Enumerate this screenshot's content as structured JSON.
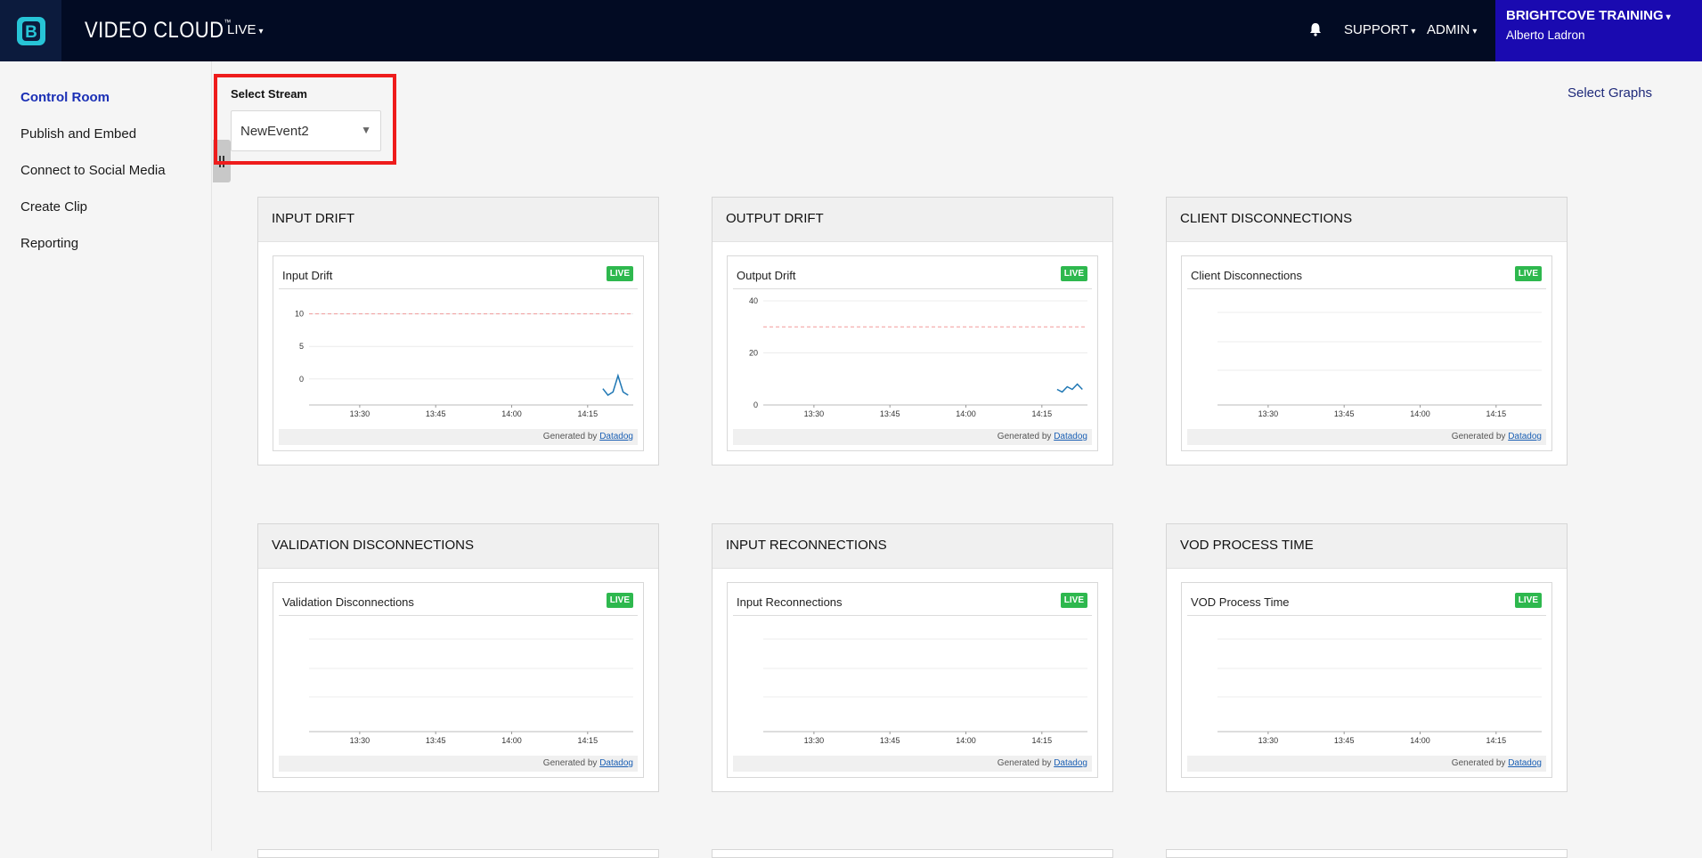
{
  "header": {
    "logo_letter": "B",
    "brand": "VIDEO CLOUD",
    "brand_mark": "™",
    "nav_live": "LIVE",
    "nav_support": "SUPPORT",
    "nav_admin": "ADMIN",
    "account_name": "BRIGHTCOVE TRAINING",
    "account_user": "Alberto Ladron",
    "caret": "▾"
  },
  "sidebar": {
    "items": [
      {
        "label": "Control Room",
        "active": true
      },
      {
        "label": "Publish and Embed"
      },
      {
        "label": "Connect to Social Media"
      },
      {
        "label": "Create Clip"
      },
      {
        "label": "Reporting"
      }
    ]
  },
  "stream": {
    "label": "Select Stream",
    "selected": "NewEvent2",
    "arrow": "▼"
  },
  "select_graphs": "Select Graphs",
  "colors": {
    "header_bg": "#020b23",
    "account_bg": "#1a0ab0",
    "live_badge": "#2eb84e",
    "highlight": "#ee1c1c",
    "series": "#1f77b4",
    "threshold": "#f19a9a"
  },
  "panels": [
    {
      "heading": "INPUT DRIFT",
      "title": "Input Drift",
      "badge": "LIVE",
      "footer_prefix": "Generated by",
      "footer_link": "Datadog"
    },
    {
      "heading": "OUTPUT DRIFT",
      "title": "Output Drift",
      "badge": "LIVE",
      "footer_prefix": "Generated by",
      "footer_link": "Datadog"
    },
    {
      "heading": "CLIENT DISCONNECTIONS",
      "title": "Client Disconnections",
      "badge": "LIVE",
      "footer_prefix": "Generated by",
      "footer_link": "Datadog"
    },
    {
      "heading": "VALIDATION DISCONNECTIONS",
      "title": "Validation Disconnections",
      "badge": "LIVE",
      "footer_prefix": "Generated by",
      "footer_link": "Datadog"
    },
    {
      "heading": "INPUT RECONNECTIONS",
      "title": "Input Reconnections",
      "badge": "LIVE",
      "footer_prefix": "Generated by",
      "footer_link": "Datadog"
    },
    {
      "heading": "VOD PROCESS TIME",
      "title": "VOD Process Time",
      "badge": "LIVE",
      "footer_prefix": "Generated by",
      "footer_link": "Datadog"
    }
  ],
  "chart_data": [
    {
      "type": "line",
      "x_ticks": [
        "13:30",
        "13:45",
        "14:00",
        "14:15"
      ],
      "y_ticks": [
        "10",
        "5",
        "0"
      ],
      "ylim": [
        -4,
        12
      ],
      "threshold": 10,
      "series": [
        {
          "x": [
            "14:18",
            "14:19",
            "14:20",
            "14:21",
            "14:22",
            "14:23"
          ],
          "values": [
            -1.5,
            -2.5,
            -2,
            0.5,
            -2,
            -2.5
          ]
        }
      ]
    },
    {
      "type": "line",
      "x_ticks": [
        "13:30",
        "13:45",
        "14:00",
        "14:15"
      ],
      "y_ticks": [
        "40",
        "20",
        "0"
      ],
      "ylim": [
        0,
        40
      ],
      "threshold": 30,
      "series": [
        {
          "x": [
            "14:18",
            "14:19",
            "14:20",
            "14:21",
            "14:22",
            "14:23"
          ],
          "values": [
            6,
            5,
            7,
            6,
            8,
            6
          ]
        }
      ]
    },
    {
      "type": "line",
      "x_ticks": [
        "13:30",
        "13:45",
        "14:00",
        "14:15"
      ],
      "y_ticks": [],
      "series": []
    },
    {
      "type": "line",
      "x_ticks": [
        "13:30",
        "13:45",
        "14:00",
        "14:15"
      ],
      "y_ticks": [],
      "series": []
    },
    {
      "type": "line",
      "x_ticks": [
        "13:30",
        "13:45",
        "14:00",
        "14:15"
      ],
      "y_ticks": [],
      "series": []
    },
    {
      "type": "line",
      "x_ticks": [
        "13:30",
        "13:45",
        "14:00",
        "14:15"
      ],
      "y_ticks": [],
      "series": []
    }
  ]
}
